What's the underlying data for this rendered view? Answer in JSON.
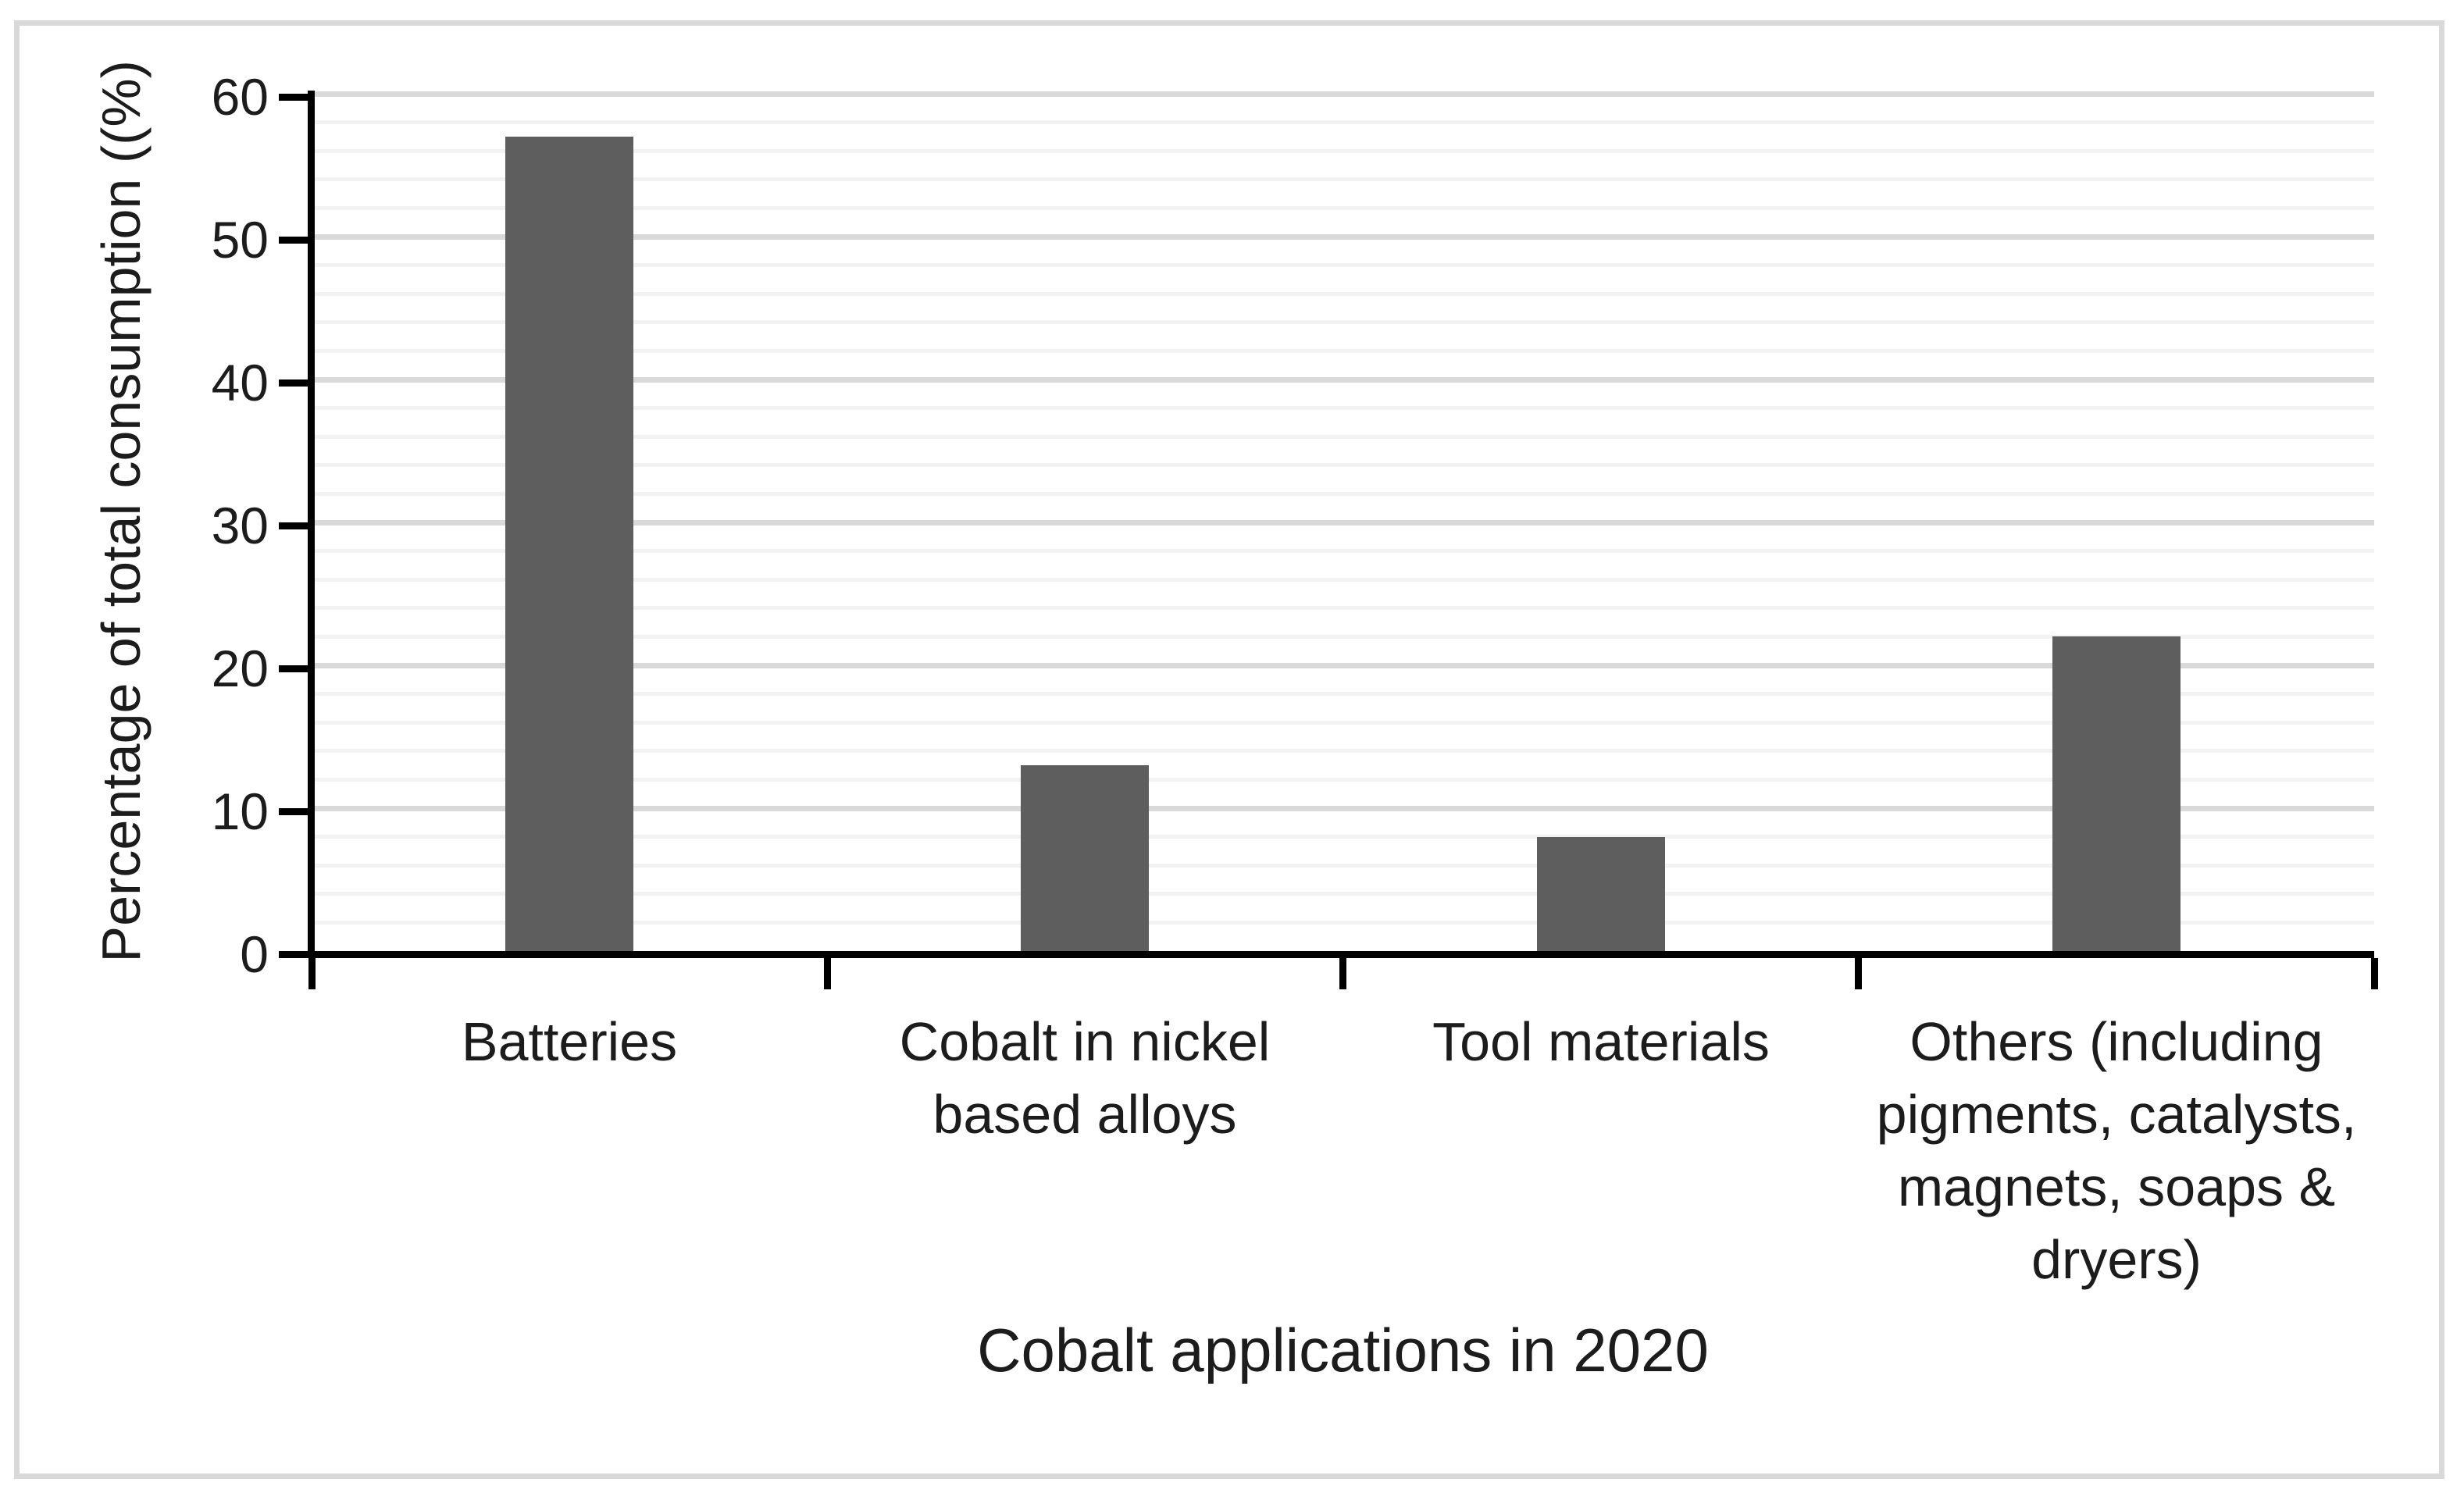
{
  "chart_data": {
    "type": "bar",
    "title": "Cobalt applications in 2020",
    "xlabel": "",
    "ylabel": "Percentage of total consumption ((%)",
    "categories": [
      "Batteries",
      "Cobalt in nickel based alloys",
      "Tool materials",
      "Others (including pigments, catalysts, magnets, soaps & dryers)"
    ],
    "category_lines": [
      [
        "Batteries"
      ],
      [
        "Cobalt in nickel",
        "based alloys"
      ],
      [
        "Tool materials"
      ],
      [
        "Others (including",
        "pigments, catalysts,",
        "magnets, soaps &",
        "dryers)"
      ]
    ],
    "values": [
      57,
      13,
      8,
      22
    ],
    "ylim": [
      0,
      60
    ],
    "yticks": [
      0,
      10,
      20,
      30,
      40,
      50,
      60
    ],
    "ytick_step": 10,
    "minor_grid_step": 2,
    "grid": true,
    "legend_position": "none",
    "bar_color": "#5e5e5e",
    "major_grid_color": "#d9d9d9",
    "minor_grid_color": "#f2f2f2",
    "axis_color": "#000000",
    "text_color": "#1c1c1c",
    "frame_color": "#d9d9d9"
  }
}
